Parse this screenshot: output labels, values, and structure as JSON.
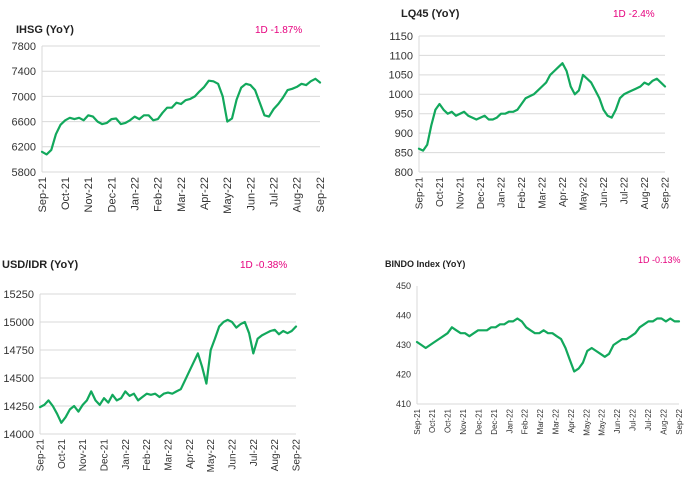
{
  "colors": {
    "line": "#12a85c",
    "badge": "#e6007e",
    "grid": "#d9d9d9"
  },
  "chart_data": [
    {
      "type": "line",
      "title": "IHSG (YoY)",
      "badge": "1D -1.87%",
      "ylim": [
        5800,
        7800
      ],
      "yticks": [
        "7800",
        "7400",
        "7000",
        "6600",
        "6200",
        "5800"
      ],
      "xticks": [
        "Sep-21",
        "Oct-21",
        "Nov-21",
        "Dec-21",
        "Jan-22",
        "Feb-22",
        "Mar-22",
        "Apr-22",
        "May-22",
        "Jun-22",
        "Jul-22",
        "Aug-22",
        "Sep-22"
      ],
      "grid": "horizontal",
      "series": [
        {
          "values": [
            6120,
            6080,
            6150,
            6400,
            6550,
            6620,
            6660,
            6640,
            6660,
            6620,
            6700,
            6680,
            6600,
            6560,
            6580,
            6640,
            6650,
            6560,
            6580,
            6620,
            6680,
            6640,
            6700,
            6700,
            6620,
            6640,
            6740,
            6820,
            6820,
            6900,
            6880,
            6940,
            6960,
            7000,
            7080,
            7150,
            7250,
            7240,
            7200,
            7000,
            6600,
            6650,
            6950,
            7140,
            7200,
            7180,
            7100,
            6900,
            6700,
            6680,
            6800,
            6880,
            6980,
            7100,
            7120,
            7150,
            7200,
            7180,
            7240,
            7280,
            7220
          ]
        }
      ]
    },
    {
      "type": "line",
      "title": "LQ45 (YoY)",
      "badge": "1D -2.4%",
      "ylim": [
        800,
        1150
      ],
      "yticks": [
        "1150",
        "1100",
        "1050",
        "1000",
        "950",
        "900",
        "850",
        "800"
      ],
      "xticks": [
        "Sep-21",
        "Oct-21",
        "Nov-21",
        "Dec-21",
        "Jan-22",
        "Feb-22",
        "Mar-22",
        "Apr-22",
        "May-22",
        "Jun-22",
        "Jul-22",
        "Aug-22",
        "Sep-22"
      ],
      "grid": "horizontal",
      "series": [
        {
          "values": [
            860,
            855,
            870,
            920,
            960,
            975,
            960,
            950,
            955,
            945,
            950,
            955,
            945,
            940,
            935,
            940,
            945,
            935,
            935,
            940,
            950,
            950,
            955,
            955,
            960,
            975,
            990,
            995,
            1000,
            1010,
            1020,
            1030,
            1050,
            1060,
            1070,
            1080,
            1060,
            1020,
            1000,
            1010,
            1050,
            1040,
            1030,
            1010,
            990,
            960,
            945,
            940,
            960,
            990,
            1000,
            1005,
            1010,
            1015,
            1020,
            1030,
            1025,
            1035,
            1040,
            1030,
            1020
          ]
        }
      ]
    },
    {
      "type": "line",
      "title": "USD/IDR  (YoY)",
      "badge": "1D -0.38%",
      "ylim": [
        14000,
        15250
      ],
      "yticks": [
        "15250",
        "15000",
        "14750",
        "14500",
        "14250",
        "14000"
      ],
      "xticks": [
        "Sep-21",
        "Oct-21",
        "Nov-21",
        "Dec-21",
        "Jan-22",
        "Feb-22",
        "Mar-22",
        "Apr-22",
        "May-22",
        "Jun-22",
        "Jul-22",
        "Aug-22",
        "Sep-22"
      ],
      "grid": "horizontal",
      "series": [
        {
          "values": [
            14240,
            14260,
            14300,
            14250,
            14180,
            14100,
            14150,
            14220,
            14250,
            14200,
            14260,
            14300,
            14380,
            14300,
            14260,
            14320,
            14280,
            14350,
            14300,
            14320,
            14380,
            14340,
            14360,
            14300,
            14330,
            14360,
            14350,
            14360,
            14330,
            14360,
            14370,
            14360,
            14380,
            14400,
            14480,
            14560,
            14640,
            14720,
            14600,
            14450,
            14750,
            14850,
            14960,
            15000,
            15020,
            15000,
            14950,
            14980,
            15000,
            14900,
            14720,
            14850,
            14880,
            14900,
            14920,
            14930,
            14890,
            14920,
            14900,
            14920,
            14960
          ]
        }
      ]
    },
    {
      "type": "line",
      "title": "BINDO Index (YoY)",
      "badge": "1D -0.13%",
      "ylim": [
        410,
        450
      ],
      "yticks": [
        "450",
        "440",
        "430",
        "420",
        "410"
      ],
      "xticks": [
        "Sep-21",
        "Oct-21",
        "Oct-21",
        "Nov-21",
        "Dec-21",
        "Dec-21",
        "Jan-22",
        "Feb-22",
        "Mar-22",
        "Mar-22",
        "Apr-22",
        "May-22",
        "May-22",
        "Jun-22",
        "Jul-22",
        "Jul-22",
        "Aug-22",
        "Sep-22"
      ],
      "grid": "none",
      "series": [
        {
          "values": [
            431,
            430,
            429,
            430,
            431,
            432,
            433,
            434,
            436,
            435,
            434,
            434,
            433,
            434,
            435,
            435,
            435,
            436,
            436,
            437,
            437,
            438,
            438,
            439,
            438,
            436,
            435,
            434,
            434,
            435,
            434,
            434,
            433,
            432,
            429,
            425,
            421,
            422,
            424,
            428,
            429,
            428,
            427,
            426,
            427,
            430,
            431,
            432,
            432,
            433,
            434,
            436,
            437,
            438,
            438,
            439,
            439,
            438,
            439,
            438,
            438
          ]
        }
      ]
    }
  ]
}
